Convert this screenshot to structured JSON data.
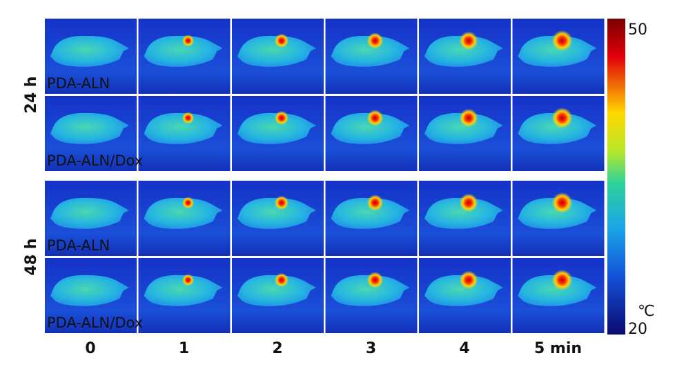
{
  "groups": [
    {
      "label": "24 h",
      "rows": [
        "PDA-ALN",
        "PDA-ALN/Dox"
      ]
    },
    {
      "label": "48 h",
      "rows": [
        "PDA-ALN",
        "PDA-ALN/Dox"
      ]
    }
  ],
  "columns": [
    "0",
    "1",
    "2",
    "3",
    "4",
    "5 min"
  ],
  "colorbar": {
    "max": "50",
    "unit": "℃",
    "min": "20"
  }
}
